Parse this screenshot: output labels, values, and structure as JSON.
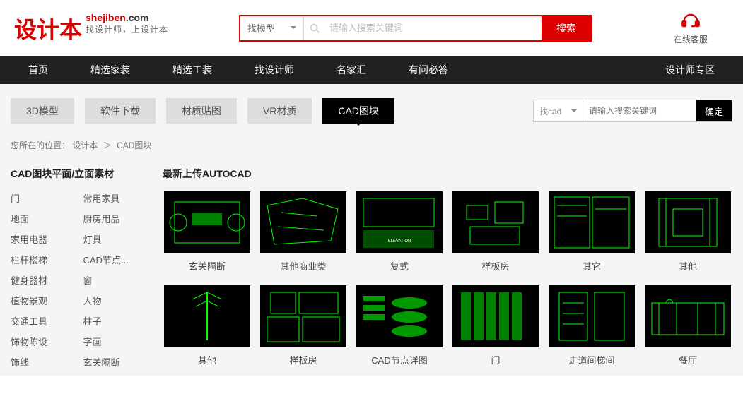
{
  "logo": {
    "cn": "设计本",
    "en_red": "shejiben",
    "en_black": ".com",
    "slogan": "找设计师，上设计本"
  },
  "search": {
    "type": "找模型",
    "placeholder": "请输入搜索关键词",
    "btn": "搜索"
  },
  "service": {
    "text": "在线客服"
  },
  "nav": [
    "首页",
    "精选家装",
    "精选工装",
    "找设计师",
    "名家汇",
    "有问必答"
  ],
  "nav_right": "设计师专区",
  "tabs": [
    "3D模型",
    "软件下载",
    "材质贴图",
    "VR材质",
    "CAD图块"
  ],
  "tabs_active": 4,
  "sub_search": {
    "type": "找cad",
    "placeholder": "请输入搜索关键词",
    "btn": "确定"
  },
  "breadcrumb": {
    "label": "您所在的位置：",
    "parts": [
      "设计本",
      "CAD图块"
    ]
  },
  "sidebar": {
    "title": "CAD图块平面/立面素材",
    "cats_left": [
      "门",
      "地面",
      "家用电器",
      "栏杆楼梯",
      "健身器材",
      "植物景观",
      "交通工具",
      "饰物陈设",
      "饰线"
    ],
    "cats_right": [
      "常用家具",
      "厨房用品",
      "灯具",
      "CAD节点...",
      "窗",
      "人物",
      "柱子",
      "字画",
      "玄关隔断"
    ]
  },
  "content": {
    "title": "最新上传AUTOCAD",
    "items": [
      {
        "title": "玄关隔断",
        "pattern": 1
      },
      {
        "title": "其他商业类",
        "pattern": 2
      },
      {
        "title": "复式",
        "pattern": 3
      },
      {
        "title": "样板房",
        "pattern": 4
      },
      {
        "title": "其它",
        "pattern": 5
      },
      {
        "title": "其他",
        "pattern": 6
      },
      {
        "title": "其他",
        "pattern": 7
      },
      {
        "title": "样板房",
        "pattern": 8
      },
      {
        "title": "CAD节点详图",
        "pattern": 9
      },
      {
        "title": "门",
        "pattern": 10
      },
      {
        "title": "走道间梯间",
        "pattern": 11
      },
      {
        "title": "餐厅",
        "pattern": 12
      }
    ]
  }
}
